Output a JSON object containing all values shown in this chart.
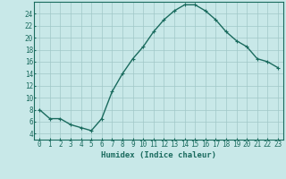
{
  "x": [
    0,
    1,
    2,
    3,
    4,
    5,
    6,
    7,
    8,
    9,
    10,
    11,
    12,
    13,
    14,
    15,
    16,
    17,
    18,
    19,
    20,
    21,
    22,
    23
  ],
  "y": [
    8,
    6.5,
    6.5,
    5.5,
    5,
    4.5,
    6.5,
    11,
    14,
    16.5,
    18.5,
    21,
    23,
    24.5,
    25.5,
    25.5,
    24.5,
    23,
    21,
    19.5,
    18.5,
    16.5,
    16,
    15
  ],
  "line_color": "#1a6b5e",
  "bg_color": "#c8e8e8",
  "grid_color": "#a0c8c8",
  "xlabel": "Humidex (Indice chaleur)",
  "xlim": [
    -0.5,
    23.5
  ],
  "ylim": [
    3,
    26
  ],
  "yticks": [
    4,
    6,
    8,
    10,
    12,
    14,
    16,
    18,
    20,
    22,
    24
  ],
  "xtick_labels": [
    "0",
    "1",
    "2",
    "3",
    "4",
    "5",
    "6",
    "7",
    "8",
    "9",
    "10",
    "11",
    "12",
    "13",
    "14",
    "15",
    "16",
    "17",
    "18",
    "19",
    "20",
    "21",
    "22",
    "23"
  ],
  "tick_color": "#1a6b5e",
  "xlabel_fontsize": 6.5,
  "tick_fontsize": 5.5,
  "marker": "+",
  "markersize": 3.5,
  "linewidth": 1.0
}
